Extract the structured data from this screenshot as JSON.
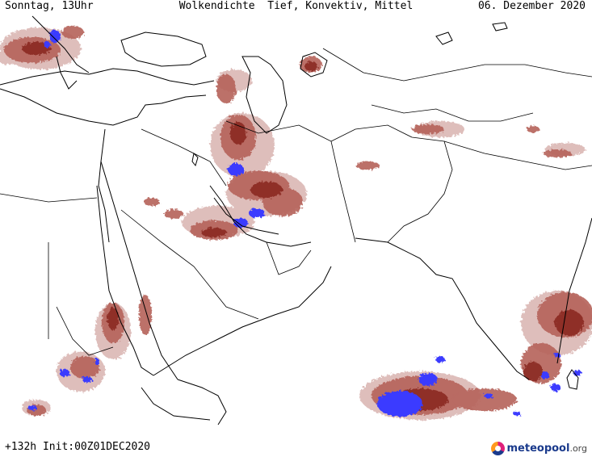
{
  "header": {
    "left": "Sonntag, 13Uhr",
    "center": "Wolkendichte  Tief, Konvektiv, Mittel",
    "right": "06. Dezember 2020"
  },
  "footer": {
    "run": "+132h Init:00Z01DEC2020",
    "logo_main": "meteopool",
    "logo_tld": ".org"
  },
  "colors": {
    "background": "#ffffff",
    "coastline": "#000000",
    "cloud_light": "#d9b3b0",
    "cloud_mid": "#b5625a",
    "cloud_dark": "#8a2a22",
    "cloud_dense": "#3a3aff"
  },
  "icons": [
    "meteopool-logo-icon"
  ]
}
